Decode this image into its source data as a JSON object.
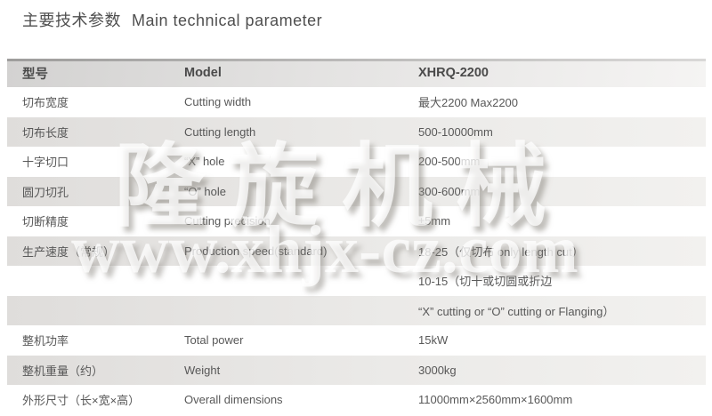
{
  "page": {
    "title_zh": "主要技术参数",
    "title_en": "Main technical parameter"
  },
  "watermark": {
    "brand": "隆旋机械",
    "url": "www.xhjx-cz.com"
  },
  "colors": {
    "row_alt": "#dfddda",
    "header_start": "#d3d2d1",
    "text": "#585858"
  },
  "table": {
    "header": {
      "col1": "型号",
      "col2": "Model",
      "col3": "XHRQ-2200"
    },
    "rows": [
      {
        "zh": "切布宽度",
        "en": "Cutting width",
        "value": "最大2200 Max2200"
      },
      {
        "zh": "切布长度",
        "en": "Cutting length",
        "value": "500-10000mm"
      },
      {
        "zh": "十字切口",
        "en": "“X” hole",
        "value": "200-500mm"
      },
      {
        "zh": "圆刀切孔",
        "en": "“O” hole",
        "value": "300-600mm"
      },
      {
        "zh": "切断精度",
        "en": "Cutting precision",
        "value": "±5mm"
      },
      {
        "zh": "生产速度（常规）",
        "en": "Production speed(standard)",
        "value": "18-25（仅切布 only length cut）"
      },
      {
        "zh": "",
        "en": "",
        "value": "10-15（切十或切圆或折边"
      },
      {
        "zh": "",
        "en": "",
        "value": "“X” cutting or “O” cutting or Flanging）"
      },
      {
        "zh": "整机功率",
        "en": "Total power",
        "value": "15kW"
      },
      {
        "zh": "整机重量（约）",
        "en": "Weight",
        "value": "3000kg"
      },
      {
        "zh": "外形尺寸（长×宽×高）",
        "en": "Overall dimensions",
        "value": "11000mm×2560mm×1600mm"
      }
    ]
  }
}
